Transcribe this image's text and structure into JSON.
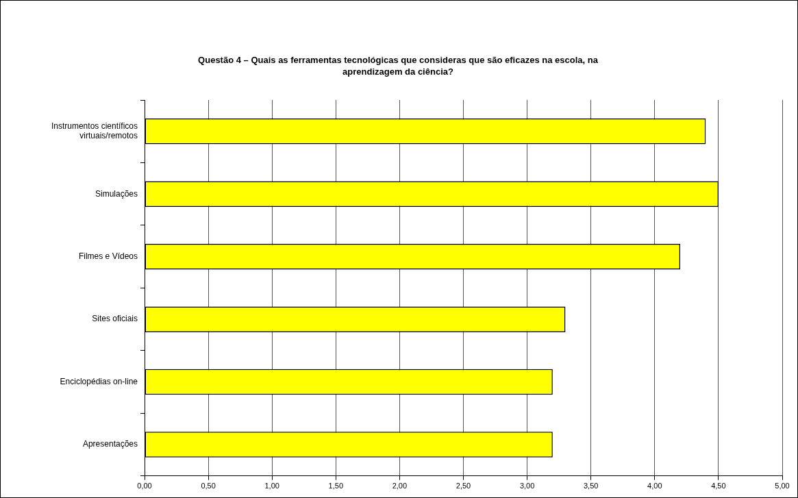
{
  "chart_data": {
    "type": "bar",
    "orientation": "horizontal",
    "title": "Questão 4 – Quais as ferramentas tecnológicas que consideras que são eficazes na escola, na aprendizagem da ciência?",
    "categories": [
      "Instrumentos científicos virtuais/remotos",
      "Simulações",
      "Filmes e Vídeos",
      "Sites oficiais",
      "Enciclopédias on-line",
      "Apresentações"
    ],
    "values": [
      4.4,
      4.5,
      4.2,
      3.3,
      3.2,
      3.2
    ],
    "color": "#ffff00",
    "xlim": [
      0,
      5
    ],
    "xticks": [
      {
        "value": 0,
        "label": "0,00"
      },
      {
        "value": 0.5,
        "label": "0,50"
      },
      {
        "value": 1,
        "label": "1,00"
      },
      {
        "value": 1.5,
        "label": "1,50"
      },
      {
        "value": 2,
        "label": "2,00"
      },
      {
        "value": 2.5,
        "label": "2,50"
      },
      {
        "value": 3,
        "label": "3,00"
      },
      {
        "value": 3.5,
        "label": "3,50"
      },
      {
        "value": 4,
        "label": "4,00"
      },
      {
        "value": 4.5,
        "label": "4,50"
      },
      {
        "value": 5,
        "label": "5,00"
      }
    ],
    "grid": "x",
    "legend": false
  }
}
